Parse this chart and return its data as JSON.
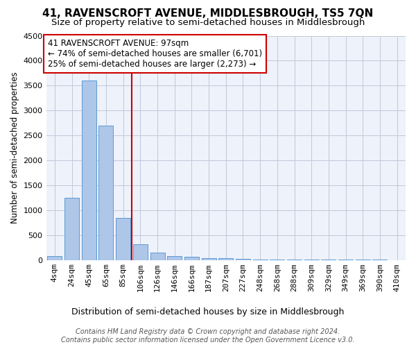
{
  "title": "41, RAVENSCROFT AVENUE, MIDDLESBROUGH, TS5 7QN",
  "subtitle": "Size of property relative to semi-detached houses in Middlesbrough",
  "xlabel": "Distribution of semi-detached houses by size in Middlesbrough",
  "ylabel": "Number of semi-detached properties",
  "bar_labels": [
    "4sqm",
    "24sqm",
    "45sqm",
    "65sqm",
    "85sqm",
    "106sqm",
    "126sqm",
    "146sqm",
    "166sqm",
    "187sqm",
    "207sqm",
    "227sqm",
    "248sqm",
    "268sqm",
    "288sqm",
    "309sqm",
    "329sqm",
    "349sqm",
    "369sqm",
    "390sqm",
    "410sqm"
  ],
  "bar_values": [
    80,
    1250,
    3600,
    2700,
    850,
    320,
    150,
    80,
    60,
    40,
    30,
    20,
    15,
    10,
    8,
    5,
    4,
    3,
    2,
    2,
    1
  ],
  "bar_color": "#aec6e8",
  "bar_edgecolor": "#5b9bd5",
  "background_color": "#eef2fb",
  "grid_color": "#c0c8d8",
  "annotation_text": "41 RAVENSCROFT AVENUE: 97sqm\n← 74% of semi-detached houses are smaller (6,701)\n25% of semi-detached houses are larger (2,273) →",
  "vline_pos": 4.5,
  "vline_color": "#cc0000",
  "box_color": "#cc0000",
  "ylim": [
    0,
    4500
  ],
  "yticks": [
    0,
    500,
    1000,
    1500,
    2000,
    2500,
    3000,
    3500,
    4000,
    4500
  ],
  "footer": "Contains HM Land Registry data © Crown copyright and database right 2024.\nContains public sector information licensed under the Open Government Licence v3.0.",
  "title_fontsize": 11,
  "subtitle_fontsize": 9.5,
  "xlabel_fontsize": 9,
  "ylabel_fontsize": 8.5,
  "tick_fontsize": 8,
  "annotation_fontsize": 8.5,
  "footer_fontsize": 7
}
